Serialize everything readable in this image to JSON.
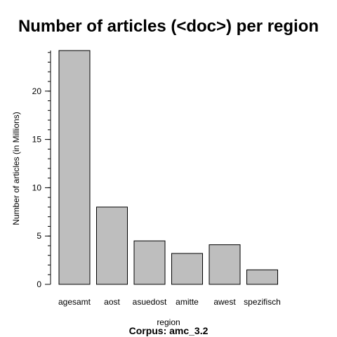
{
  "chart_data": {
    "type": "bar",
    "title": "Number of articles (<doc>) per region",
    "subtitle": "Corpus: amc_3.2",
    "xlabel": "region",
    "ylabel": "Number of articles (in Millions)",
    "categories": [
      "agesamt",
      "aost",
      "asuedost",
      "amitte",
      "awest",
      "spezifisch"
    ],
    "values": [
      24.2,
      8.0,
      4.5,
      3.2,
      4.1,
      1.5
    ],
    "ylim": [
      0,
      24.2
    ],
    "yticks": [
      0,
      5,
      10,
      15,
      20
    ],
    "minor_tick_step": 1,
    "colors": {
      "bar_fill": "#bebebe",
      "bar_stroke": "#000000"
    },
    "grid": false,
    "legend": "none"
  }
}
